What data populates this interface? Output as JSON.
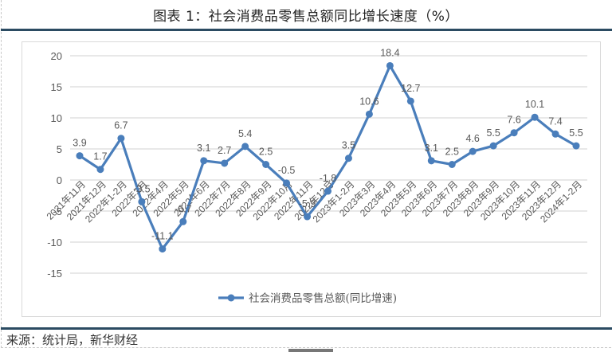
{
  "figure": {
    "title": "图表 1：社会消费品零售总额同比增长速度（%）",
    "source": "来源：统计局，新华财经"
  },
  "colors": {
    "series": "#4a7ebb",
    "rule": "#2b4b62",
    "grid": "#d9d9d9",
    "text": "#595959"
  },
  "chart_data": {
    "type": "line",
    "title": "社会消费品零售总额同比增长速度（%）",
    "xlabel": "",
    "ylabel": "",
    "ylim": [
      -15,
      20
    ],
    "yticks": [
      20,
      15,
      10,
      5,
      0,
      -5,
      -10,
      -15
    ],
    "grid": true,
    "legend_position": "bottom",
    "categories": [
      "2021年11月",
      "2021年12月",
      "2022年1-2月",
      "2022年3月",
      "2022年4月",
      "2022年5月",
      "2022年6月",
      "2022年7月",
      "2022年8月",
      "2022年9月",
      "2022年10月",
      "2022年11月",
      "2022年12月",
      "2023年1-2月",
      "2023年3月",
      "2023年4月",
      "2023年5月",
      "2023年6月",
      "2023年7月",
      "2023年8月",
      "2023年9月",
      "2023年10月",
      "2023年11月",
      "2023年12月",
      "2024年1-2月"
    ],
    "series": [
      {
        "name": "社会消费品零售总额(同比增速)",
        "values": [
          3.9,
          1.7,
          6.7,
          -3.5,
          -11.1,
          -6.7,
          3.1,
          2.7,
          5.4,
          2.5,
          -0.5,
          -5.9,
          -1.8,
          3.5,
          10.6,
          18.4,
          12.7,
          3.1,
          2.5,
          4.6,
          5.5,
          7.6,
          10.1,
          7.4,
          5.5
        ],
        "labels": [
          "3.9",
          "1.7",
          "6.7",
          "-3.5",
          "-11.1",
          "-6.7",
          "3.1",
          "2.7",
          "5.4",
          "2.5",
          "-0.5",
          "-5.9",
          "-1.8",
          "3.5",
          "10.6",
          "18.4",
          "12.7",
          "3.1",
          "2.5",
          "4.6",
          "5.5",
          "7.6",
          "10.1",
          "7.4",
          "5.5"
        ]
      }
    ]
  }
}
